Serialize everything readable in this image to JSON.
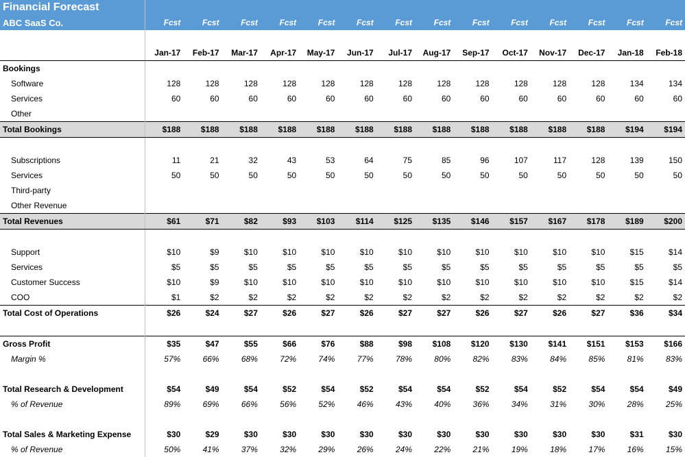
{
  "header": {
    "title": "Financial Forecast",
    "company": "ABC SaaS Co.",
    "col_type": "Fcst"
  },
  "months": [
    "Jan-17",
    "Feb-17",
    "Mar-17",
    "Apr-17",
    "May-17",
    "Jun-17",
    "Jul-17",
    "Aug-17",
    "Sep-17",
    "Oct-17",
    "Nov-17",
    "Dec-17",
    "Jan-18",
    "Feb-18"
  ],
  "sections": {
    "bookings": {
      "title": "Bookings",
      "rows": [
        {
          "label": "Software",
          "vals": [
            "128",
            "128",
            "128",
            "128",
            "128",
            "128",
            "128",
            "128",
            "128",
            "128",
            "128",
            "128",
            "134",
            "134"
          ]
        },
        {
          "label": "Services",
          "vals": [
            "60",
            "60",
            "60",
            "60",
            "60",
            "60",
            "60",
            "60",
            "60",
            "60",
            "60",
            "60",
            "60",
            "60"
          ]
        },
        {
          "label": "Other",
          "vals": [
            "",
            "",
            "",
            "",
            "",
            "",
            "",
            "",
            "",
            "",
            "",
            "",
            "",
            ""
          ]
        }
      ],
      "total": {
        "label": "Total Bookings",
        "vals": [
          "$188",
          "$188",
          "$188",
          "$188",
          "$188",
          "$188",
          "$188",
          "$188",
          "$188",
          "$188",
          "$188",
          "$188",
          "$194",
          "$194"
        ]
      }
    },
    "revenues": {
      "rows": [
        {
          "label": "Subscriptions",
          "vals": [
            "11",
            "21",
            "32",
            "43",
            "53",
            "64",
            "75",
            "85",
            "96",
            "107",
            "117",
            "128",
            "139",
            "150"
          ]
        },
        {
          "label": "Services",
          "vals": [
            "50",
            "50",
            "50",
            "50",
            "50",
            "50",
            "50",
            "50",
            "50",
            "50",
            "50",
            "50",
            "50",
            "50"
          ]
        },
        {
          "label": "Third-party",
          "vals": [
            "",
            "",
            "",
            "",
            "",
            "",
            "",
            "",
            "",
            "",
            "",
            "",
            "",
            ""
          ]
        },
        {
          "label": "Other Revenue",
          "vals": [
            "",
            "",
            "",
            "",
            "",
            "",
            "",
            "",
            "",
            "",
            "",
            "",
            "",
            ""
          ]
        }
      ],
      "total": {
        "label": "Total Revenues",
        "vals": [
          "$61",
          "$71",
          "$82",
          "$93",
          "$103",
          "$114",
          "$125",
          "$135",
          "$146",
          "$157",
          "$167",
          "$178",
          "$189",
          "$200"
        ]
      }
    },
    "costs": {
      "rows": [
        {
          "label": "Support",
          "vals": [
            "$10",
            "$9",
            "$10",
            "$10",
            "$10",
            "$10",
            "$10",
            "$10",
            "$10",
            "$10",
            "$10",
            "$10",
            "$15",
            "$14"
          ]
        },
        {
          "label": "Services",
          "vals": [
            "$5",
            "$5",
            "$5",
            "$5",
            "$5",
            "$5",
            "$5",
            "$5",
            "$5",
            "$5",
            "$5",
            "$5",
            "$5",
            "$5"
          ]
        },
        {
          "label": "Customer Success",
          "vals": [
            "$10",
            "$9",
            "$10",
            "$10",
            "$10",
            "$10",
            "$10",
            "$10",
            "$10",
            "$10",
            "$10",
            "$10",
            "$15",
            "$14"
          ]
        },
        {
          "label": "COO",
          "vals": [
            "$1",
            "$2",
            "$2",
            "$2",
            "$2",
            "$2",
            "$2",
            "$2",
            "$2",
            "$2",
            "$2",
            "$2",
            "$2",
            "$2"
          ]
        }
      ],
      "total": {
        "label": "Total Cost of Operations",
        "vals": [
          "$26",
          "$24",
          "$27",
          "$26",
          "$27",
          "$26",
          "$27",
          "$27",
          "$26",
          "$27",
          "$26",
          "$27",
          "$36",
          "$34"
        ]
      }
    },
    "gross_profit": {
      "label": "Gross Profit",
      "vals": [
        "$35",
        "$47",
        "$55",
        "$66",
        "$76",
        "$88",
        "$98",
        "$108",
        "$120",
        "$130",
        "$141",
        "$151",
        "$153",
        "$166"
      ],
      "margin_label": "Margin %",
      "margin_vals": [
        "57%",
        "66%",
        "68%",
        "72%",
        "74%",
        "77%",
        "78%",
        "80%",
        "82%",
        "83%",
        "84%",
        "85%",
        "81%",
        "83%"
      ]
    },
    "rnd": {
      "label": "Total Research & Development",
      "vals": [
        "$54",
        "$49",
        "$54",
        "$52",
        "$54",
        "$52",
        "$54",
        "$54",
        "$52",
        "$54",
        "$52",
        "$54",
        "$54",
        "$49"
      ],
      "pct_label": "% of Revenue",
      "pct_vals": [
        "89%",
        "69%",
        "66%",
        "56%",
        "52%",
        "46%",
        "43%",
        "40%",
        "36%",
        "34%",
        "31%",
        "30%",
        "28%",
        "25%"
      ]
    },
    "snm": {
      "label": "Total Sales & Marketing Expense",
      "vals": [
        "$30",
        "$29",
        "$30",
        "$30",
        "$30",
        "$30",
        "$30",
        "$30",
        "$30",
        "$30",
        "$30",
        "$30",
        "$31",
        "$30"
      ],
      "pct_label": "% of Revenue",
      "pct_vals": [
        "50%",
        "41%",
        "37%",
        "32%",
        "29%",
        "26%",
        "24%",
        "22%",
        "21%",
        "19%",
        "18%",
        "17%",
        "16%",
        "15%"
      ]
    }
  },
  "colors": {
    "header_bg": "#5b9bd5",
    "subtotal_bg": "#d9d9d9",
    "border": "#000000"
  }
}
